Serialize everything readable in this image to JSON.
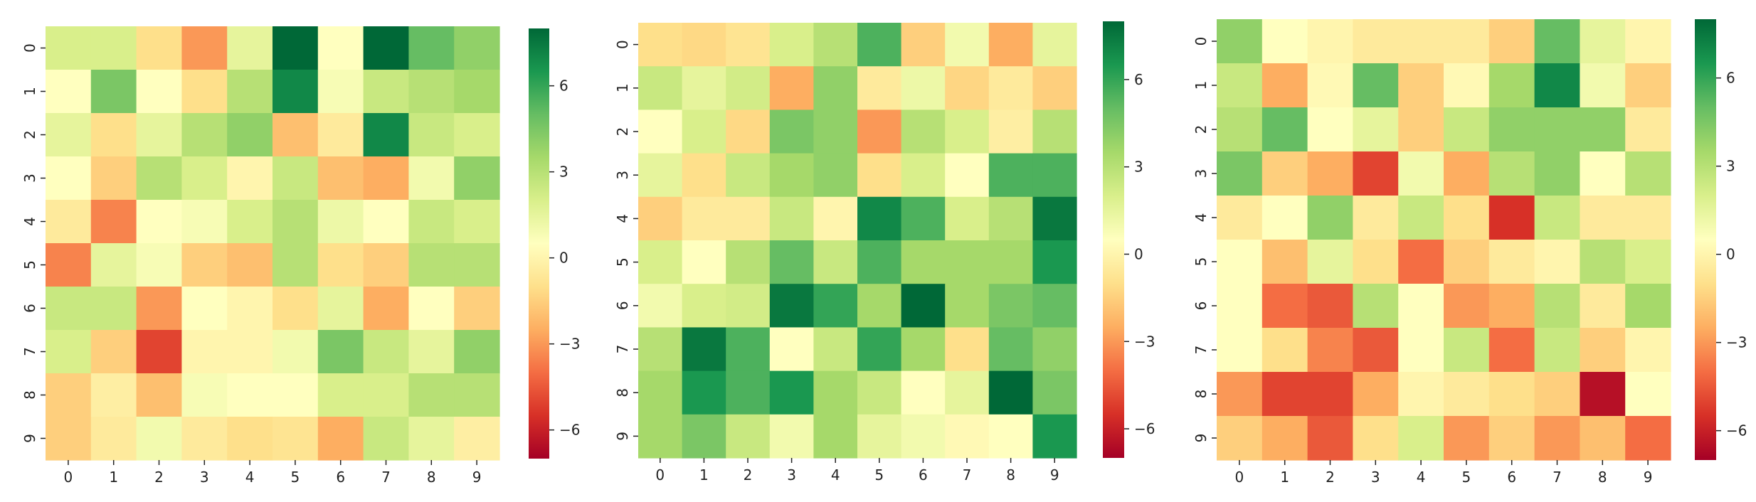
{
  "figure": {
    "background": "#ffffff"
  },
  "colormap": {
    "name": "RdYlGn",
    "vmin": -7,
    "vmax": 8,
    "stops": [
      "#a50026",
      "#d73027",
      "#f46d43",
      "#fdae61",
      "#fee08b",
      "#ffffbf",
      "#d9ef8b",
      "#a6d96a",
      "#66bd63",
      "#1a9850",
      "#006837"
    ],
    "colorbar_ticks": [
      -6,
      -3,
      0,
      3,
      6
    ],
    "colorbar_tick_labels": [
      "−6",
      "−3",
      "0",
      "3",
      "6"
    ]
  },
  "chart_data": [
    {
      "type": "heatmap",
      "title": "",
      "xlabel": "",
      "ylabel": "",
      "x_tick_labels": [
        "0",
        "1",
        "2",
        "3",
        "4",
        "5",
        "6",
        "7",
        "8",
        "9"
      ],
      "y_tick_labels": [
        "0",
        "1",
        "2",
        "3",
        "4",
        "5",
        "6",
        "7",
        "8",
        "9"
      ],
      "values": [
        [
          2,
          2,
          -1,
          -3,
          1.5,
          8,
          0.5,
          8,
          5,
          4
        ],
        [
          0.5,
          4.5,
          0.5,
          -1,
          3,
          7,
          0.8,
          2.5,
          3,
          3.5
        ],
        [
          1.5,
          -1,
          1.5,
          3,
          4,
          -2,
          -0.5,
          7,
          2.5,
          2
        ],
        [
          0.5,
          -1.5,
          3,
          2,
          0,
          2.5,
          -2,
          -2.5,
          1,
          4
        ],
        [
          -0.5,
          -3.5,
          0.5,
          0.8,
          2,
          3,
          1.2,
          0.5,
          2.5,
          2
        ],
        [
          -3.5,
          1.5,
          0.8,
          -1.5,
          -2,
          3,
          -1,
          -1.5,
          3,
          3
        ],
        [
          2.5,
          2.5,
          -3,
          0.5,
          0,
          -1,
          1.5,
          -2.5,
          0.5,
          -1.5
        ],
        [
          2,
          -1.5,
          -5,
          0,
          0,
          1,
          4.5,
          2.5,
          1.5,
          4
        ],
        [
          -1.5,
          -0.3,
          -2,
          0.8,
          0.5,
          0.5,
          2,
          2,
          3,
          3
        ],
        [
          -1.5,
          -0.5,
          1,
          -0.5,
          -1,
          -0.8,
          -2.5,
          2.5,
          1.5,
          -0.3
        ]
      ]
    },
    {
      "type": "heatmap",
      "title": "",
      "xlabel": "",
      "ylabel": "",
      "x_tick_labels": [
        "0",
        "1",
        "2",
        "3",
        "4",
        "5",
        "6",
        "7",
        "8",
        "9"
      ],
      "y_tick_labels": [
        "0",
        "1",
        "2",
        "3",
        "4",
        "5",
        "6",
        "7",
        "8",
        "9"
      ],
      "values": [
        [
          -1,
          -1.2,
          -0.8,
          2,
          3,
          5.5,
          -1.5,
          1,
          -2.5,
          1.5
        ],
        [
          2.5,
          1.5,
          2.2,
          -2.5,
          4,
          -0.5,
          1.2,
          -1.3,
          -0.5,
          -1.5
        ],
        [
          0.5,
          2,
          -1.2,
          4.5,
          4,
          -3,
          3,
          2,
          -0.3,
          3
        ],
        [
          1.5,
          -1,
          2.5,
          3.5,
          4,
          -1,
          2,
          0.5,
          5.5,
          5.5
        ],
        [
          -1.5,
          -0.5,
          -0.5,
          2.5,
          0,
          7,
          5.5,
          2,
          3,
          7.5
        ],
        [
          2,
          0.5,
          3,
          5,
          2.5,
          5.5,
          3.5,
          3.5,
          3.5,
          6.5
        ],
        [
          1,
          2,
          2.2,
          7.5,
          6,
          3.5,
          8,
          3.5,
          4.5,
          5
        ],
        [
          3,
          7.5,
          5.5,
          0.5,
          2.5,
          6,
          3.5,
          -1,
          5,
          4
        ],
        [
          3.5,
          6.5,
          5.5,
          6.5,
          3.5,
          2.5,
          0.5,
          1.5,
          8,
          4.5
        ],
        [
          3.5,
          4.5,
          2.5,
          1,
          3.5,
          1.5,
          1,
          0.2,
          0.5,
          6.5
        ]
      ]
    },
    {
      "type": "heatmap",
      "title": "",
      "xlabel": "",
      "ylabel": "",
      "x_tick_labels": [
        "0",
        "1",
        "2",
        "3",
        "4",
        "5",
        "6",
        "7",
        "8",
        "9"
      ],
      "y_tick_labels": [
        "0",
        "1",
        "2",
        "3",
        "4",
        "5",
        "6",
        "7",
        "8",
        "9"
      ],
      "values": [
        [
          4,
          0.5,
          0,
          -0.5,
          -0.5,
          -0.5,
          -1.5,
          5,
          1.5,
          0
        ],
        [
          2.5,
          -2.5,
          0.2,
          5,
          -1.5,
          0.2,
          3.5,
          7,
          1,
          -1.5
        ],
        [
          3,
          5,
          0.5,
          1.5,
          -1.5,
          2.5,
          4,
          4,
          4,
          -0.5
        ],
        [
          4.5,
          -1.5,
          -2.5,
          -5,
          1,
          -2.5,
          3,
          4,
          0.5,
          3
        ],
        [
          -0.5,
          0.5,
          4,
          -0.5,
          2.5,
          -1,
          -5.5,
          2.5,
          -0.5,
          -0.5
        ],
        [
          0.5,
          -2,
          1.5,
          -1,
          -4,
          -1.5,
          -0.5,
          0,
          3,
          2
        ],
        [
          0.5,
          -4,
          -4.5,
          3,
          0.5,
          -3,
          -2.5,
          3,
          -0.5,
          3.5
        ],
        [
          0.5,
          -1,
          -3.5,
          -4.5,
          0.5,
          2.5,
          -4,
          2.5,
          -1.5,
          0
        ],
        [
          -3,
          -5,
          -5,
          -2.5,
          0,
          -0.5,
          -1,
          -1.5,
          -6.5,
          0.5
        ],
        [
          -1.5,
          -2.5,
          -4.5,
          -1,
          2,
          -3,
          -1.5,
          -3,
          -2,
          -4
        ]
      ]
    }
  ]
}
